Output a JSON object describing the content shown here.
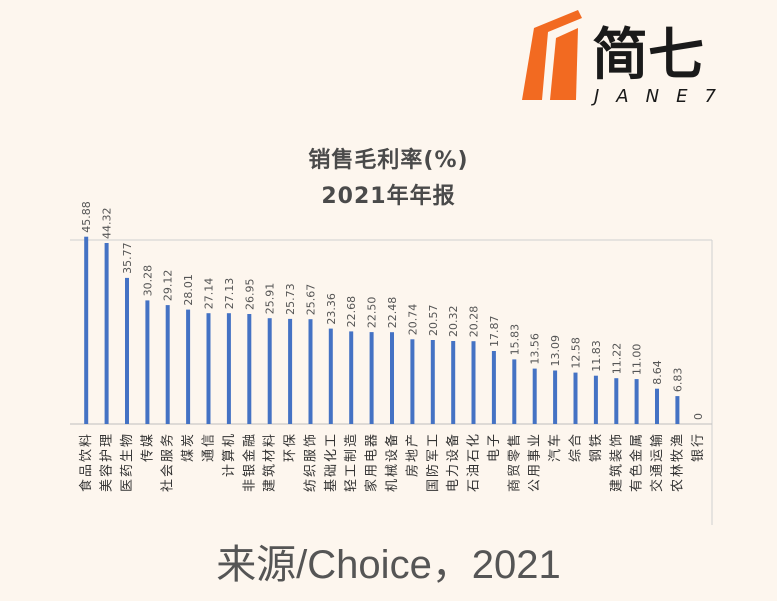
{
  "brand": {
    "name_cn": "简七",
    "name_en": "JANE7",
    "accent_color": "#f26a21",
    "text_color": "#1a1a1a"
  },
  "source": "来源/Choice，2021",
  "chart_data": {
    "type": "bar",
    "title": "销售毛利率(%)",
    "subtitle": "2021年年报",
    "xlabel": "",
    "ylabel": "",
    "ylim": [
      0,
      48
    ],
    "grid": false,
    "legend": "none",
    "bar_color": "#4472c4",
    "categories": [
      "食品饮料",
      "美容护理",
      "医药生物",
      "传媒",
      "社会服务",
      "煤炭",
      "通信",
      "计算机",
      "非银金融",
      "建筑材料",
      "环保",
      "纺织服饰",
      "基础化工",
      "轻工制造",
      "家用电器",
      "机械设备",
      "房地产",
      "国防军工",
      "电力设备",
      "石油石化",
      "电子",
      "商贸零售",
      "公用事业",
      "汽车",
      "综合",
      "钢铁",
      "建筑装饰",
      "有色金属",
      "交通运输",
      "农林牧渔",
      "银行"
    ],
    "values": [
      45.88,
      44.32,
      35.77,
      30.28,
      29.12,
      28.01,
      27.14,
      27.13,
      26.95,
      25.91,
      25.73,
      25.67,
      23.36,
      22.68,
      22.5,
      22.48,
      20.74,
      20.57,
      20.32,
      20.28,
      17.87,
      15.83,
      13.56,
      13.09,
      12.58,
      11.83,
      11.22,
      11.0,
      8.64,
      6.83,
      0
    ],
    "value_labels": [
      "45.88",
      "44.32",
      "35.77",
      "30.28",
      "29.12",
      "28.01",
      "27.14",
      "27.13",
      "26.95",
      "25.91",
      "25.73",
      "25.67",
      "23.36",
      "22.68",
      "22.50",
      "22.48",
      "20.74",
      "20.57",
      "20.32",
      "20.28",
      "17.87",
      "15.83",
      "13.56",
      "13.09",
      "12.58",
      "11.83",
      "11.22",
      "11.00",
      "8.64",
      "6.83",
      "0"
    ]
  }
}
